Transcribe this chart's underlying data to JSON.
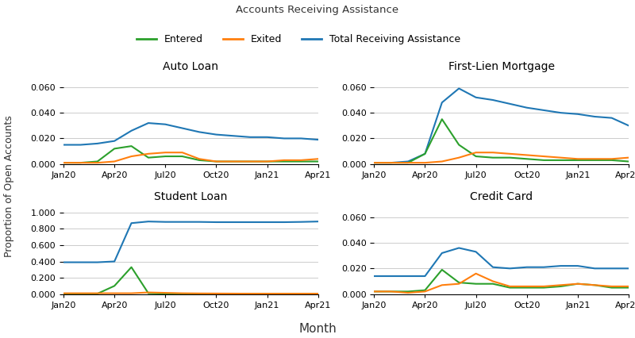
{
  "title": "Accounts Receiving Assistance",
  "legend_labels": [
    "Entered",
    "Exited",
    "Total Receiving Assistance"
  ],
  "legend_colors": [
    "#2ca02c",
    "#ff7f0e",
    "#1f77b4"
  ],
  "xlabel": "Month",
  "ylabel": "Proportion of Open Accounts",
  "subplots": [
    {
      "title": "Auto Loan",
      "ylim": [
        0,
        0.07
      ],
      "yticks": [
        0.0,
        0.02,
        0.04,
        0.06
      ],
      "entered": [
        0.001,
        0.001,
        0.002,
        0.012,
        0.014,
        0.005,
        0.006,
        0.006,
        0.003,
        0.002,
        0.002,
        0.002,
        0.002,
        0.002,
        0.002,
        0.002
      ],
      "exited": [
        0.001,
        0.001,
        0.001,
        0.002,
        0.006,
        0.008,
        0.009,
        0.009,
        0.004,
        0.002,
        0.002,
        0.002,
        0.002,
        0.003,
        0.003,
        0.004
      ],
      "total": [
        0.015,
        0.015,
        0.016,
        0.018,
        0.026,
        0.032,
        0.031,
        0.028,
        0.025,
        0.023,
        0.022,
        0.021,
        0.021,
        0.02,
        0.02,
        0.019
      ]
    },
    {
      "title": "First-Lien Mortgage",
      "ylim": [
        0,
        0.07
      ],
      "yticks": [
        0.0,
        0.02,
        0.04,
        0.06
      ],
      "entered": [
        0.001,
        0.001,
        0.001,
        0.008,
        0.035,
        0.015,
        0.006,
        0.005,
        0.005,
        0.004,
        0.003,
        0.003,
        0.003,
        0.003,
        0.003,
        0.002
      ],
      "exited": [
        0.001,
        0.001,
        0.001,
        0.001,
        0.002,
        0.005,
        0.009,
        0.009,
        0.008,
        0.007,
        0.006,
        0.005,
        0.004,
        0.004,
        0.004,
        0.005
      ],
      "total": [
        0.001,
        0.001,
        0.002,
        0.008,
        0.048,
        0.059,
        0.052,
        0.05,
        0.047,
        0.044,
        0.042,
        0.04,
        0.039,
        0.037,
        0.036,
        0.03
      ]
    },
    {
      "title": "Student Loan",
      "ylim": [
        0,
        1.1
      ],
      "yticks": [
        0.0,
        0.2,
        0.4,
        0.6,
        0.8,
        1.0
      ],
      "entered": [
        0.005,
        0.005,
        0.005,
        0.1,
        0.33,
        0.01,
        0.005,
        0.005,
        0.005,
        0.005,
        0.004,
        0.004,
        0.004,
        0.004,
        0.004,
        0.004
      ],
      "exited": [
        0.01,
        0.01,
        0.01,
        0.01,
        0.01,
        0.02,
        0.015,
        0.01,
        0.008,
        0.007,
        0.006,
        0.005,
        0.005,
        0.005,
        0.005,
        0.005
      ],
      "total": [
        0.39,
        0.39,
        0.39,
        0.4,
        0.87,
        0.89,
        0.885,
        0.885,
        0.885,
        0.882,
        0.882,
        0.882,
        0.882,
        0.882,
        0.885,
        0.89
      ]
    },
    {
      "title": "Credit Card",
      "ylim": [
        0,
        0.07
      ],
      "yticks": [
        0.0,
        0.02,
        0.04,
        0.06
      ],
      "entered": [
        0.002,
        0.002,
        0.002,
        0.003,
        0.019,
        0.009,
        0.008,
        0.008,
        0.005,
        0.005,
        0.005,
        0.006,
        0.008,
        0.007,
        0.005,
        0.005
      ],
      "exited": [
        0.002,
        0.002,
        0.001,
        0.002,
        0.007,
        0.008,
        0.016,
        0.01,
        0.006,
        0.006,
        0.006,
        0.007,
        0.008,
        0.007,
        0.006,
        0.006
      ],
      "total": [
        0.014,
        0.014,
        0.014,
        0.014,
        0.032,
        0.036,
        0.033,
        0.021,
        0.02,
        0.021,
        0.021,
        0.022,
        0.022,
        0.02,
        0.02,
        0.02
      ]
    }
  ],
  "x_tick_labels": [
    "Jan20",
    "Apr20",
    "Jul20",
    "Oct20",
    "Jan21",
    "Apr21"
  ],
  "x_tick_positions": [
    0,
    3,
    6,
    9,
    12,
    15
  ]
}
